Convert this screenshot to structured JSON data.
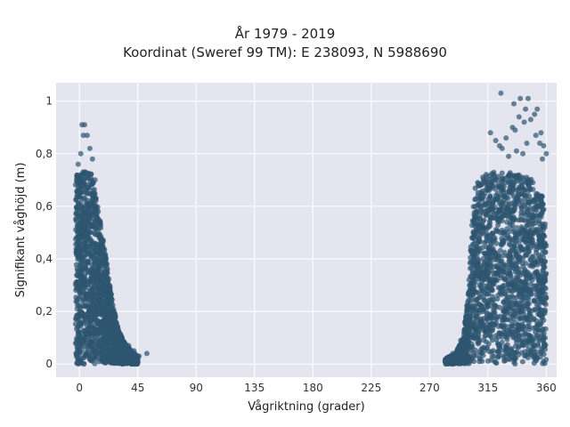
{
  "chart_data": {
    "type": "scatter",
    "title": "År 1979 - 2019",
    "subtitle": "Koordinat (Sweref 99 TM): E 238093, N 5988690",
    "xlabel": "Vågriktning (grader)",
    "ylabel": "Signifikant våghöjd (m)",
    "xlim": [
      -18,
      368
    ],
    "ylim": [
      -0.05,
      1.07
    ],
    "x_ticks": [
      0,
      45,
      90,
      135,
      180,
      225,
      270,
      315,
      360
    ],
    "x_tick_labels": [
      "0",
      "45",
      "90",
      "135",
      "180",
      "225",
      "270",
      "315",
      "360"
    ],
    "y_ticks": [
      0,
      0.2,
      0.4,
      0.6,
      0.8,
      1
    ],
    "y_tick_labels": [
      "0",
      "0,2",
      "0,4",
      "0,6",
      "0,8",
      "1"
    ],
    "grid": true,
    "marker_color": "#2e5670",
    "background_color": "#e5e5ef",
    "clusters": [
      {
        "x_range": [
          -3,
          45
        ],
        "y_range": [
          0,
          0.8
        ],
        "profile": [
          [
            0,
            0.72
          ],
          [
            5,
            0.74
          ],
          [
            10,
            0.72
          ],
          [
            15,
            0.58
          ],
          [
            20,
            0.42
          ],
          [
            25,
            0.25
          ],
          [
            30,
            0.13
          ],
          [
            35,
            0.08
          ],
          [
            40,
            0.05
          ],
          [
            45,
            0.03
          ]
        ]
      },
      {
        "x_range": [
          282,
          360
        ],
        "y_range": [
          0,
          0.8
        ],
        "profile": [
          [
            282,
            0.02
          ],
          [
            290,
            0.04
          ],
          [
            296,
            0.1
          ],
          [
            300,
            0.28
          ],
          [
            302,
            0.5
          ],
          [
            305,
            0.68
          ],
          [
            310,
            0.72
          ],
          [
            320,
            0.73
          ],
          [
            330,
            0.73
          ],
          [
            340,
            0.72
          ],
          [
            350,
            0.7
          ],
          [
            357,
            0.64
          ],
          [
            360,
            0.5
          ]
        ]
      }
    ],
    "outliers": [
      [
        2,
        0.91
      ],
      [
        4,
        0.91
      ],
      [
        3,
        0.87
      ],
      [
        6,
        0.87
      ],
      [
        8,
        0.82
      ],
      [
        1,
        0.8
      ],
      [
        10,
        0.78
      ],
      [
        -1,
        0.76
      ],
      [
        12,
        0.7
      ],
      [
        20,
        0.34
      ],
      [
        25,
        0.19
      ],
      [
        28,
        0.12
      ],
      [
        32,
        0.09
      ],
      [
        38,
        0.07
      ],
      [
        42,
        0.05
      ],
      [
        46,
        0.03
      ],
      [
        52,
        0.04
      ],
      [
        325,
        1.03
      ],
      [
        340,
        1.01
      ],
      [
        346,
        1.01
      ],
      [
        335,
        0.99
      ],
      [
        344,
        0.97
      ],
      [
        353,
        0.97
      ],
      [
        351,
        0.95
      ],
      [
        339,
        0.94
      ],
      [
        348,
        0.93
      ],
      [
        343,
        0.92
      ],
      [
        334,
        0.9
      ],
      [
        336,
        0.89
      ],
      [
        356,
        0.88
      ],
      [
        317,
        0.88
      ],
      [
        352,
        0.87
      ],
      [
        329,
        0.86
      ],
      [
        321,
        0.85
      ],
      [
        345,
        0.84
      ],
      [
        358,
        0.83
      ],
      [
        355,
        0.84
      ],
      [
        324,
        0.83
      ],
      [
        326,
        0.82
      ],
      [
        337,
        0.81
      ],
      [
        360,
        0.8
      ],
      [
        342,
        0.8
      ],
      [
        357,
        0.78
      ],
      [
        331,
        0.79
      ],
      [
        288,
        0.04
      ],
      [
        284,
        0.02
      ],
      [
        292,
        0.06
      ],
      [
        294,
        0.09
      ]
    ]
  }
}
